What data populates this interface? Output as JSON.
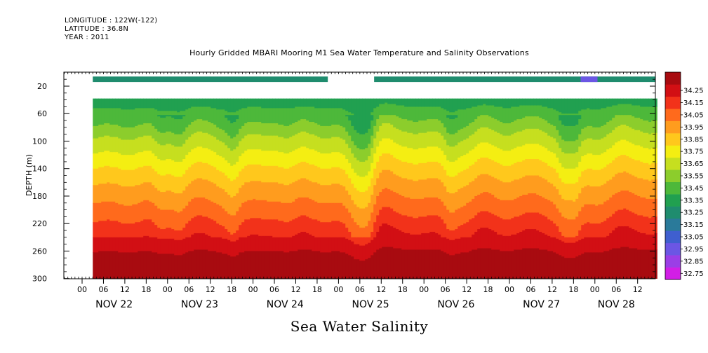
{
  "header": {
    "longitude": "LONGITUDE : 122W(-122)",
    "latitude": "LATITUDE : 36.8N",
    "year": "YEAR : 2011",
    "title": "Hourly Gridded MBARI Mooring M1 Sea Water Temperature and Salinity Observations"
  },
  "footer": {
    "title": "Sea Water Salinity"
  },
  "chart_data": {
    "type": "heatmap",
    "title": "Hourly Gridded MBARI Mooring M1 Sea Water Temperature and Salinity Observations",
    "xlabel": "",
    "ylabel": "DEPTH (m)",
    "y_ticks": [
      20,
      60,
      100,
      140,
      180,
      220,
      260,
      300
    ],
    "y_range": [
      300,
      5
    ],
    "hour_ticks": [
      "00",
      "06",
      "12",
      "18",
      "00",
      "06",
      "12",
      "18",
      "00",
      "06",
      "12",
      "18",
      "00",
      "06",
      "12",
      "18",
      "00",
      "06",
      "12",
      "18",
      "00",
      "06",
      "12",
      "18",
      "00",
      "06",
      "12"
    ],
    "x_hour_start": 0,
    "x_hour_end": 165,
    "day_labels": [
      {
        "label": "NOV 22",
        "hour": 9
      },
      {
        "label": "NOV 23",
        "hour": 33
      },
      {
        "label": "NOV 24",
        "hour": 57
      },
      {
        "label": "NOV 25",
        "hour": 81
      },
      {
        "label": "NOV 26",
        "hour": 105
      },
      {
        "label": "NOV 27",
        "hour": 129
      },
      {
        "label": "NOV 28",
        "hour": 150
      }
    ],
    "colorbar": {
      "levels": [
        "32.75",
        "32.85",
        "32.95",
        "33.05",
        "33.15",
        "33.25",
        "33.35",
        "33.45",
        "33.55",
        "33.65",
        "33.75",
        "33.85",
        "33.95",
        "34.05",
        "34.15",
        "34.25"
      ],
      "colors": [
        "#d21ee6",
        "#9b3ee6",
        "#6b56e4",
        "#3f5fcf",
        "#2a7a9a",
        "#1f8c6e",
        "#21a050",
        "#4db83a",
        "#8ccd2c",
        "#c6df1f",
        "#f4ee12",
        "#ffc81c",
        "#ff9c1e",
        "#ff6a1c",
        "#f2321a",
        "#d20f14",
        "#a80b10"
      ]
    },
    "data_gaps": [
      {
        "depth_range": [
          5,
          15
        ],
        "hour_range": [
          0,
          8
        ],
        "note": "no data"
      },
      {
        "depth_range": [
          5,
          15
        ],
        "hour_range": [
          69,
          82
        ],
        "note": "no data"
      },
      {
        "depth_range": [
          15,
          38
        ],
        "hour_range": [
          0,
          165
        ],
        "note": "no data"
      }
    ],
    "approx_field": "Salinity increases with depth: ~33.25 near 20 m, ~33.35-33.45 at 40-60 m, ~33.65-33.75 near 100-140 m, ~33.95-34.05 near 180-220 m, ~34.15-34.25 at 250-300 m."
  }
}
